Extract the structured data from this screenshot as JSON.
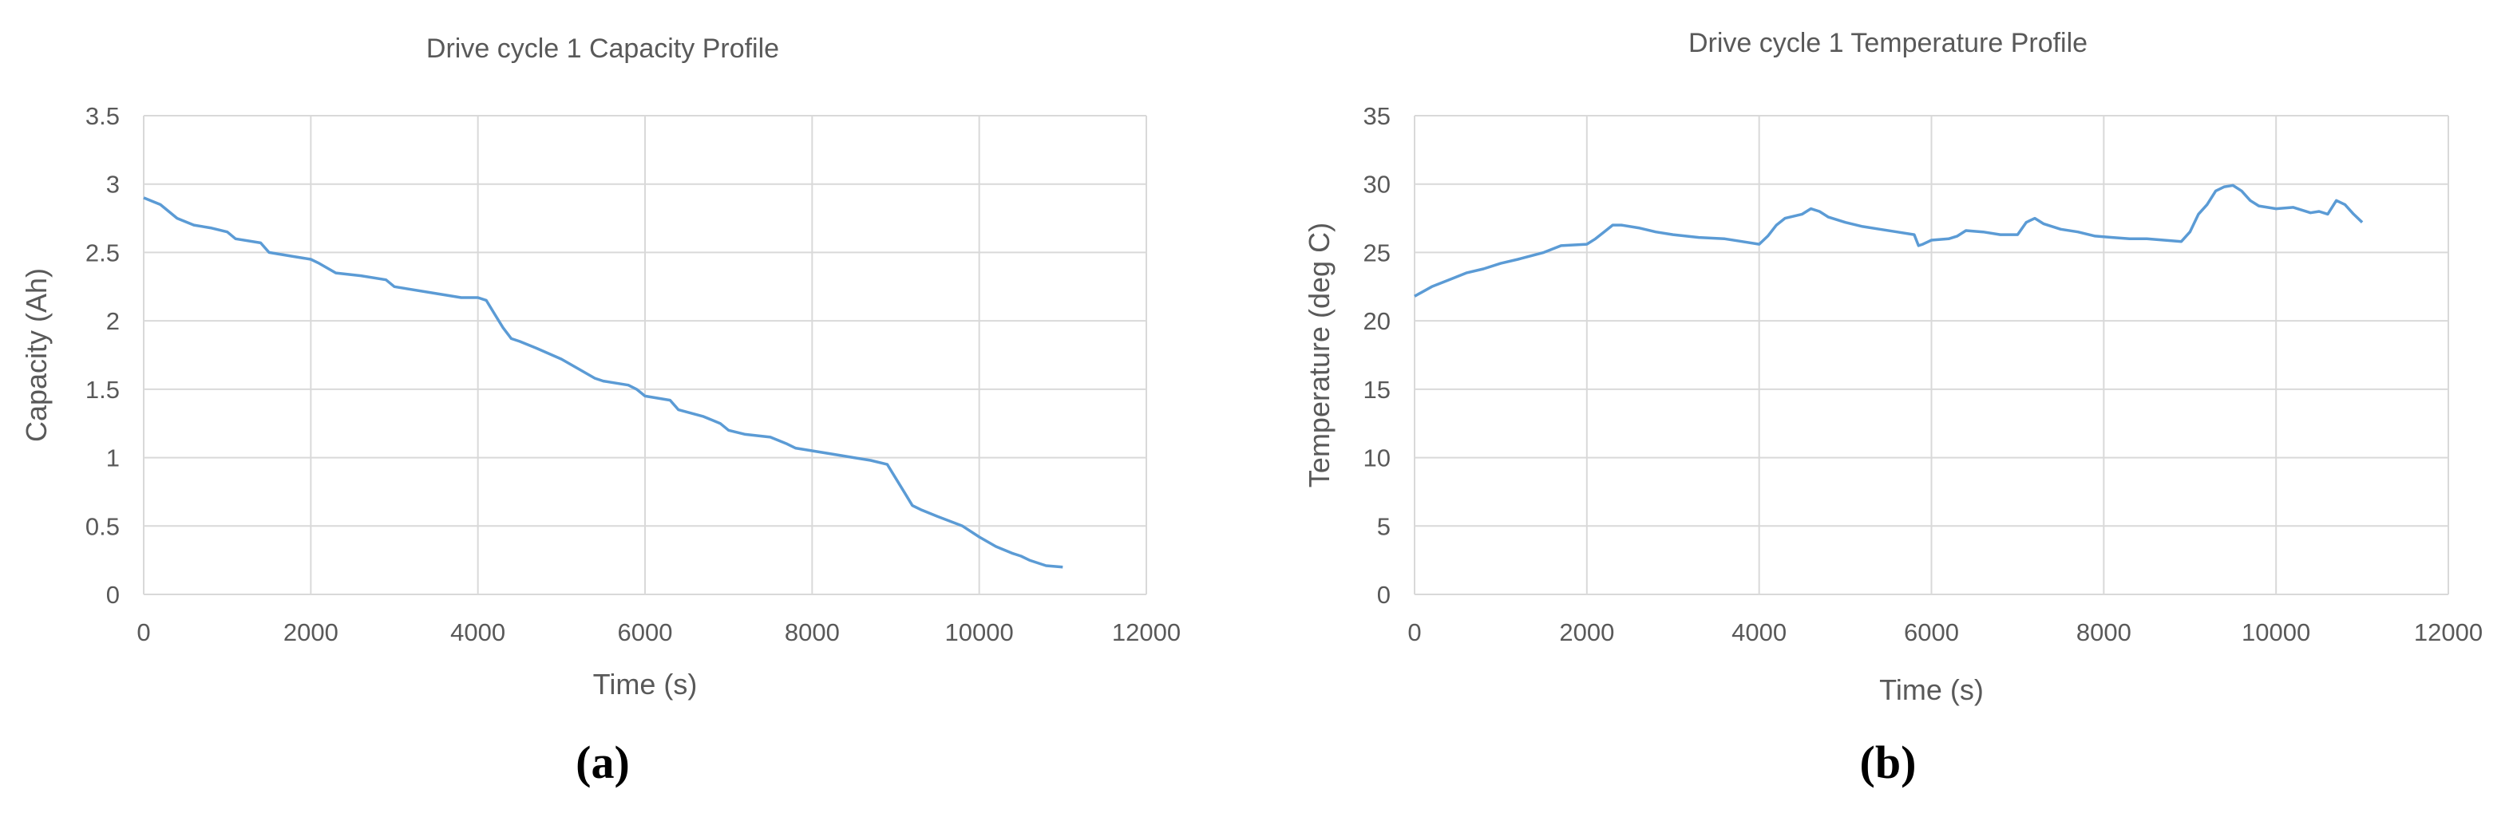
{
  "chart_data": [
    {
      "type": "line",
      "title": "Drive cycle 1 Capacity Profile",
      "xlabel": "Time (s)",
      "ylabel": "Capacity (Ah)",
      "panel_label": "(a)",
      "xlim": [
        0,
        12000
      ],
      "ylim": [
        0,
        3.5
      ],
      "x_ticks": [
        0,
        2000,
        4000,
        6000,
        8000,
        10000,
        12000
      ],
      "y_ticks": [
        0,
        0.5,
        1,
        1.5,
        2,
        2.5,
        3,
        3.5
      ],
      "x_tick_labels": [
        "0",
        "2000",
        "4000",
        "6000",
        "8000",
        "10000",
        "12000"
      ],
      "y_tick_labels": [
        "0",
        "0.5",
        "1",
        "1.5",
        "2",
        "2.5",
        "3",
        "3.5"
      ],
      "grid": true,
      "color": "#5b9bd5",
      "series": [
        {
          "x": [
            0,
            200,
            400,
            600,
            800,
            1000,
            1100,
            1400,
            1500,
            1800,
            2000,
            2100,
            2300,
            2600,
            2900,
            3000,
            3500,
            3800,
            4000,
            4100,
            4200,
            4300,
            4400,
            4500,
            4700,
            5000,
            5200,
            5400,
            5500,
            5800,
            5900,
            6000,
            6300,
            6400,
            6700,
            6900,
            7000,
            7200,
            7500,
            7700,
            7800,
            8000,
            8300,
            8500,
            8700,
            8900,
            9000,
            9100,
            9200,
            9300,
            9500,
            9800,
            10000,
            10200,
            10400,
            10500,
            10600,
            10800,
            11000
          ],
          "y": [
            2.9,
            2.85,
            2.75,
            2.7,
            2.68,
            2.65,
            2.6,
            2.57,
            2.5,
            2.47,
            2.45,
            2.42,
            2.35,
            2.33,
            2.3,
            2.25,
            2.2,
            2.17,
            2.17,
            2.15,
            2.05,
            1.95,
            1.87,
            1.85,
            1.8,
            1.72,
            1.65,
            1.58,
            1.56,
            1.53,
            1.5,
            1.45,
            1.42,
            1.35,
            1.3,
            1.25,
            1.2,
            1.17,
            1.15,
            1.1,
            1.07,
            1.05,
            1.02,
            1.0,
            0.98,
            0.95,
            0.85,
            0.75,
            0.65,
            0.62,
            0.57,
            0.5,
            0.42,
            0.35,
            0.3,
            0.28,
            0.25,
            0.21,
            0.2
          ]
        }
      ]
    },
    {
      "type": "line",
      "title": "Drive cycle 1 Temperature Profile",
      "xlabel": "Time (s)",
      "ylabel": "Temperature (deg C)",
      "panel_label": "(b)",
      "xlim": [
        0,
        12000
      ],
      "ylim": [
        0,
        35
      ],
      "x_ticks": [
        0,
        2000,
        4000,
        6000,
        8000,
        10000,
        12000
      ],
      "y_ticks": [
        0,
        5,
        10,
        15,
        20,
        25,
        30,
        35
      ],
      "x_tick_labels": [
        "0",
        "2000",
        "4000",
        "6000",
        "8000",
        "10000",
        "12000"
      ],
      "y_tick_labels": [
        "0",
        "5",
        "10",
        "15",
        "20",
        "25",
        "30",
        "35"
      ],
      "grid": true,
      "color": "#5b9bd5",
      "series": [
        {
          "x": [
            0,
            200,
            400,
            600,
            800,
            1000,
            1200,
            1500,
            1700,
            2000,
            2100,
            2200,
            2300,
            2400,
            2600,
            2800,
            3000,
            3300,
            3600,
            3800,
            4000,
            4100,
            4200,
            4300,
            4500,
            4600,
            4700,
            4800,
            5000,
            5200,
            5400,
            5600,
            5800,
            5850,
            5900,
            6000,
            6200,
            6300,
            6400,
            6600,
            6800,
            7000,
            7100,
            7200,
            7300,
            7500,
            7700,
            7900,
            8100,
            8300,
            8500,
            8700,
            8900,
            9000,
            9100,
            9200,
            9300,
            9400,
            9500,
            9600,
            9700,
            9800,
            10000,
            10200,
            10300,
            10400,
            10500,
            10600,
            10700,
            10800,
            10900,
            11000
          ],
          "y": [
            21.8,
            22.5,
            23.0,
            23.5,
            23.8,
            24.2,
            24.5,
            25.0,
            25.5,
            25.6,
            26.0,
            26.5,
            27.0,
            27.0,
            26.8,
            26.5,
            26.3,
            26.1,
            26.0,
            25.8,
            25.6,
            26.2,
            27.0,
            27.5,
            27.8,
            28.2,
            28.0,
            27.6,
            27.2,
            26.9,
            26.7,
            26.5,
            26.3,
            25.5,
            25.6,
            25.9,
            26.0,
            26.2,
            26.6,
            26.5,
            26.3,
            26.3,
            27.2,
            27.5,
            27.1,
            26.7,
            26.5,
            26.2,
            26.1,
            26.0,
            26.0,
            25.9,
            25.8,
            26.5,
            27.8,
            28.5,
            29.5,
            29.8,
            29.9,
            29.5,
            28.8,
            28.4,
            28.2,
            28.3,
            28.1,
            27.9,
            28.0,
            27.8,
            28.8,
            28.5,
            27.8,
            27.2
          ]
        }
      ]
    }
  ]
}
